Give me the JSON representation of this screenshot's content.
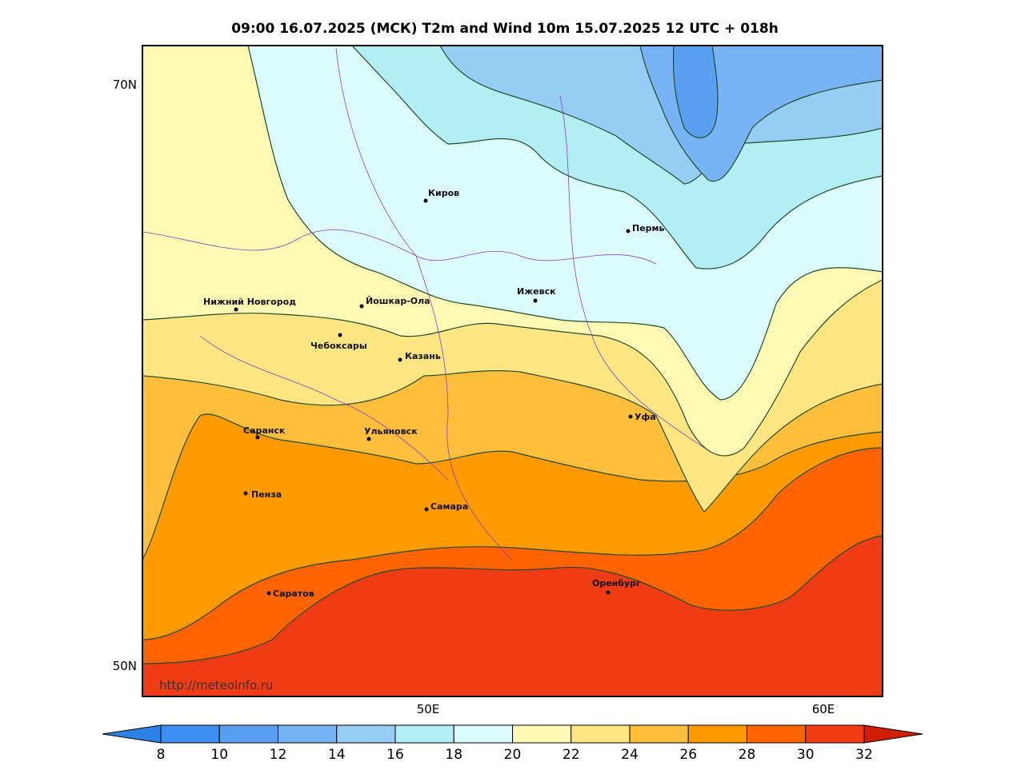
{
  "title": "09:00 16.07.2025 (МСК) T2m and Wind 10m 15.07.2025 12 UTC + 018h",
  "lat_labels": [
    "70N",
    "50N"
  ],
  "lon_labels": [
    "50E",
    "60E"
  ],
  "watermark": "http://meteoinfo.ru",
  "cities": [
    "Киров",
    "Пермь",
    "Ижевск",
    "Йошкар-Ола",
    "Нижний Новгород",
    "Чебоксары",
    "Казань",
    "Уфа",
    "Саранск",
    "Ульяновск",
    "Пенза",
    "Самара",
    "Оренбург",
    "Саратов"
  ],
  "colorbar": {
    "ticks": [
      8,
      10,
      12,
      14,
      16,
      18,
      20,
      22,
      24,
      26,
      28,
      30,
      32
    ],
    "colors": [
      "#2d82e6",
      "#3c8ef0",
      "#5aa0f0",
      "#78b4f5",
      "#96cdf5",
      "#b4eef5",
      "#dcfcfc",
      "#fff9b4",
      "#ffe682",
      "#ffbe3c",
      "#ff9b00",
      "#ff6400",
      "#f03c14",
      "#d21e00"
    ]
  }
}
